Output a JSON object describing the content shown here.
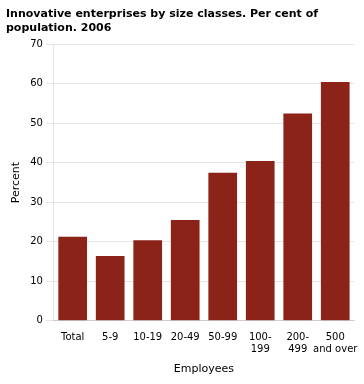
{
  "chart_data": {
    "type": "bar",
    "title": "Innovative enterprises by size classes. Per cent of\npopulation. 2006",
    "categories": [
      "Total",
      "5-9",
      "10-19",
      "20-49",
      "50-99",
      "100-\n199",
      "200-\n499",
      "500\nand over"
    ],
    "values": [
      21.3,
      16.4,
      20.4,
      25.5,
      37.5,
      40.5,
      52.5,
      60.5
    ],
    "color": "#8b2318",
    "xlabel": "Employees",
    "ylabel": "Percent",
    "ylim": [
      0,
      70
    ],
    "yticks": [
      0,
      10,
      20,
      30,
      40,
      50,
      60,
      70
    ],
    "grid": true
  }
}
